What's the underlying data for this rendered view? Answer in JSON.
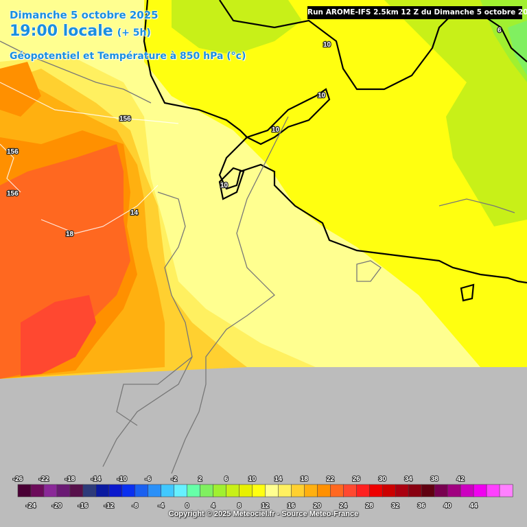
{
  "header": {
    "date": "Dimanche 5 octobre 2025",
    "time": "19:00 locale",
    "lead": "(+ 5h)",
    "field": "Géopotentiel et Température à 850 hPa (°c)"
  },
  "run_label": "Run AROME-IFS 2.5km 12 Z du Dimanche 5 octobre 2025",
  "contour_labels": [
    "156",
    "156",
    "156",
    "14",
    "18",
    "10",
    "10",
    "10",
    "10",
    "6"
  ],
  "legend": {
    "top_ticks": [
      "-26",
      "-22",
      "-18",
      "-14",
      "-10",
      "-6",
      "-2",
      "2",
      "6",
      "10",
      "14",
      "18",
      "22",
      "26",
      "30",
      "34",
      "38",
      "42"
    ],
    "bottom_ticks": [
      "-24",
      "-20",
      "-16",
      "-12",
      "-8",
      "-4",
      "0",
      "4",
      "8",
      "12",
      "16",
      "20",
      "24",
      "28",
      "32",
      "36",
      "40",
      "44"
    ],
    "colors": [
      "#4a0035",
      "#6c0b5a",
      "#8a2898",
      "#6a1a74",
      "#57104a",
      "#2d3a7a",
      "#0a1aa0",
      "#0a18cc",
      "#0a30f0",
      "#1a60f0",
      "#2a90f8",
      "#40c8ff",
      "#66f0ff",
      "#66ffa8",
      "#80f060",
      "#a0f030",
      "#c8f018",
      "#e8f000",
      "#ffff10",
      "#ffff90",
      "#fff060",
      "#ffd030",
      "#ffb010",
      "#ff9000",
      "#ff6820",
      "#ff4830",
      "#ff2020",
      "#ee0000",
      "#cc0000",
      "#aa0010",
      "#880010",
      "#600010",
      "#780050",
      "#a00080",
      "#cc00c0",
      "#f000f0",
      "#ff40ff",
      "#ff80ff"
    ]
  },
  "copyright": "Copyright © 2025 Meteociel.fr - Source Meteo-France"
}
